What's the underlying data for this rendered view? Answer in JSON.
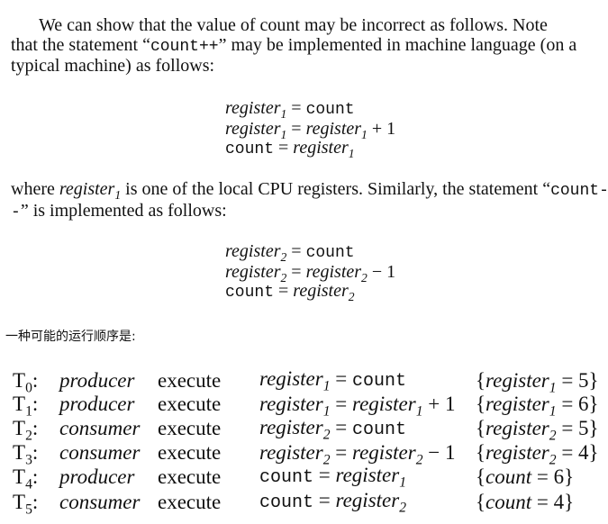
{
  "intro": {
    "line1": "We can show that the value of count may be incorrect as follows. Note",
    "line2_pre": "that the statement “",
    "line2_code": "count++",
    "line2_post": "” may be implemented in machine language (on a",
    "line3": "typical machine) as follows:"
  },
  "code_increment": [
    {
      "lhs": "register",
      "lhs_sub": "1",
      "eq": " = ",
      "rhs": "count"
    },
    {
      "lhs": "register",
      "lhs_sub": "1",
      "eq": " = ",
      "rhs": "register",
      "rhs_sub": "1",
      "tail": " + 1"
    },
    {
      "lhs": "count",
      "lhs_sub": "",
      "eq": " = ",
      "rhs": "register",
      "rhs_sub": "1"
    }
  ],
  "middle": {
    "line1_pre": "where ",
    "line1_var": "register",
    "line1_sub": "1",
    "line1_mid": " is one of the local CPU registers. Similarly, the statement “",
    "line1_code": "count-",
    "line2_code": "-",
    "line2_post": "” is implemented as follows:"
  },
  "code_decrement": [
    {
      "lhs": "register",
      "lhs_sub": "2",
      "eq": " = ",
      "rhs": "count"
    },
    {
      "lhs": "register",
      "lhs_sub": "2",
      "eq": " = ",
      "rhs": "register",
      "rhs_sub": "2",
      "tail": " − 1"
    },
    {
      "lhs": "count",
      "lhs_sub": "",
      "eq": " = ",
      "rhs": "register",
      "rhs_sub": "2"
    }
  ],
  "caption": "一种可能的运行顺序是:",
  "trace": [
    {
      "t": "T",
      "t_sub": "0",
      "actor": "producer",
      "op": "execute",
      "stmt_lhs": "register",
      "stmt_lhs_sub": "1",
      "stmt_rhs": "count",
      "stmt_rhs_sub": "",
      "stmt_tail": "",
      "state_var": "register",
      "state_sub": "1",
      "state_val": "5"
    },
    {
      "t": "T",
      "t_sub": "1",
      "actor": "producer",
      "op": "execute",
      "stmt_lhs": "register",
      "stmt_lhs_sub": "1",
      "stmt_rhs": "register",
      "stmt_rhs_sub": "1",
      "stmt_tail": " + 1",
      "state_var": "register",
      "state_sub": "1",
      "state_val": "6"
    },
    {
      "t": "T",
      "t_sub": "2",
      "actor": "consumer",
      "op": "execute",
      "stmt_lhs": "register",
      "stmt_lhs_sub": "2",
      "stmt_rhs": "count",
      "stmt_rhs_sub": "",
      "stmt_tail": "",
      "state_var": "register",
      "state_sub": "2",
      "state_val": "5"
    },
    {
      "t": "T",
      "t_sub": "3",
      "actor": "consumer",
      "op": "execute",
      "stmt_lhs": "register",
      "stmt_lhs_sub": "2",
      "stmt_rhs": "register",
      "stmt_rhs_sub": "2",
      "stmt_tail": " − 1",
      "state_var": "register",
      "state_sub": "2",
      "state_val": "4"
    },
    {
      "t": "T",
      "t_sub": "4",
      "actor": "producer",
      "op": "execute",
      "stmt_lhs": "count",
      "stmt_lhs_sub": "",
      "stmt_rhs": "register",
      "stmt_rhs_sub": "1",
      "stmt_tail": "",
      "state_var": "count",
      "state_sub": "",
      "state_val": "6"
    },
    {
      "t": "T",
      "t_sub": "5",
      "actor": "consumer",
      "op": "execute",
      "stmt_lhs": "count",
      "stmt_lhs_sub": "",
      "stmt_rhs": "register",
      "stmt_rhs_sub": "2",
      "stmt_tail": "",
      "state_var": "count",
      "state_sub": "",
      "state_val": "4"
    }
  ]
}
